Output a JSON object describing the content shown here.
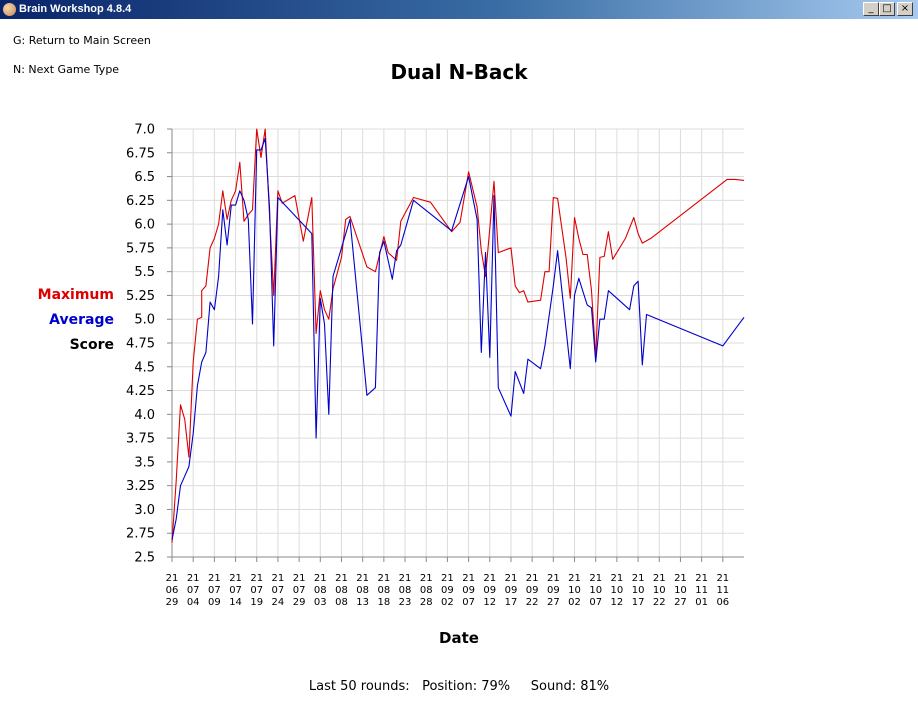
{
  "window": {
    "title": "Brain Workshop 4.8.4",
    "controls": {
      "minimize": "_",
      "maximize": "□",
      "close": "×"
    }
  },
  "hints": {
    "main_screen": "G: Return to Main Screen",
    "next_game": "N: Next Game Type"
  },
  "legend": {
    "maximum": "Maximum",
    "maximum_color": "#dd0000",
    "average": "Average",
    "average_color": "#0000cc",
    "score": "Score",
    "score_color": "#000000"
  },
  "footer": {
    "label": "Last 50 rounds:",
    "position": "Position: 79%",
    "sound": "Sound: 81%"
  },
  "chart_data": {
    "type": "line",
    "title": "Dual N-Back",
    "xlabel": "Date",
    "ylabel": "",
    "ylim": [
      2.5,
      7.0
    ],
    "yticks": [
      "2.5",
      "2.75",
      "3.0",
      "3.25",
      "3.5",
      "3.75",
      "4.0",
      "4.25",
      "4.5",
      "4.75",
      "5.0",
      "5.25",
      "5.5",
      "5.75",
      "6.0",
      "6.25",
      "6.5",
      "6.75",
      "7.0"
    ],
    "xlim": [
      "2021-06-29",
      "2021-11-11"
    ],
    "xtick_dates": [
      "2021-06-29",
      "2021-07-04",
      "2021-07-09",
      "2021-07-14",
      "2021-07-19",
      "2021-07-24",
      "2021-07-29",
      "2021-08-03",
      "2021-08-08",
      "2021-08-13",
      "2021-08-18",
      "2021-08-23",
      "2021-08-28",
      "2021-09-02",
      "2021-09-07",
      "2021-09-12",
      "2021-09-17",
      "2021-09-22",
      "2021-09-27",
      "2021-10-02",
      "2021-10-07",
      "2021-10-12",
      "2021-10-17",
      "2021-10-22",
      "2021-10-27",
      "2021-11-01",
      "2021-11-06"
    ],
    "xtick_labels": [
      [
        "21",
        "06",
        "29"
      ],
      [
        "21",
        "07",
        "04"
      ],
      [
        "21",
        "07",
        "09"
      ],
      [
        "21",
        "07",
        "14"
      ],
      [
        "21",
        "07",
        "19"
      ],
      [
        "21",
        "07",
        "24"
      ],
      [
        "21",
        "07",
        "29"
      ],
      [
        "21",
        "08",
        "03"
      ],
      [
        "21",
        "08",
        "08"
      ],
      [
        "21",
        "08",
        "13"
      ],
      [
        "21",
        "08",
        "18"
      ],
      [
        "21",
        "08",
        "23"
      ],
      [
        "21",
        "08",
        "28"
      ],
      [
        "21",
        "09",
        "02"
      ],
      [
        "21",
        "09",
        "07"
      ],
      [
        "21",
        "09",
        "12"
      ],
      [
        "21",
        "09",
        "17"
      ],
      [
        "21",
        "09",
        "22"
      ],
      [
        "21",
        "09",
        "27"
      ],
      [
        "21",
        "10",
        "02"
      ],
      [
        "21",
        "10",
        "07"
      ],
      [
        "21",
        "10",
        "12"
      ],
      [
        "21",
        "10",
        "17"
      ],
      [
        "21",
        "10",
        "22"
      ],
      [
        "21",
        "10",
        "27"
      ],
      [
        "21",
        "11",
        "01"
      ],
      [
        "21",
        "11",
        "06"
      ]
    ],
    "grid": true,
    "series": [
      {
        "name": "Maximum",
        "color": "#dd0000",
        "points": [
          [
            "2021-06-29",
            2.65
          ],
          [
            "2021-06-30",
            3.3
          ],
          [
            "2021-07-01",
            4.1
          ],
          [
            "2021-07-02",
            3.95
          ],
          [
            "2021-07-03",
            3.55
          ],
          [
            "2021-07-04",
            4.55
          ],
          [
            "2021-07-05",
            5.0
          ],
          [
            "2021-07-06",
            5.02
          ],
          [
            "2021-07-06",
            5.3
          ],
          [
            "2021-07-07",
            5.35
          ],
          [
            "2021-07-08",
            5.75
          ],
          [
            "2021-07-09",
            5.85
          ],
          [
            "2021-07-10",
            6.0
          ],
          [
            "2021-07-11",
            6.35
          ],
          [
            "2021-07-12",
            6.05
          ],
          [
            "2021-07-13",
            6.25
          ],
          [
            "2021-07-14",
            6.35
          ],
          [
            "2021-07-15",
            6.65
          ],
          [
            "2021-07-16",
            6.03
          ],
          [
            "2021-07-17",
            6.1
          ],
          [
            "2021-07-18",
            6.15
          ],
          [
            "2021-07-19",
            7.0
          ],
          [
            "2021-07-20",
            6.7
          ],
          [
            "2021-07-21",
            7.0
          ],
          [
            "2021-07-22",
            6.1
          ],
          [
            "2021-07-23",
            5.25
          ],
          [
            "2021-07-24",
            6.35
          ],
          [
            "2021-07-25",
            6.22
          ],
          [
            "2021-07-28",
            6.3
          ],
          [
            "2021-07-30",
            5.82
          ],
          [
            "2021-08-01",
            6.28
          ],
          [
            "2021-08-02",
            4.85
          ],
          [
            "2021-08-03",
            5.3
          ],
          [
            "2021-08-04",
            5.1
          ],
          [
            "2021-08-05",
            5.0
          ],
          [
            "2021-08-06",
            5.32
          ],
          [
            "2021-08-08",
            5.65
          ],
          [
            "2021-08-09",
            6.05
          ],
          [
            "2021-08-10",
            6.08
          ],
          [
            "2021-08-14",
            5.55
          ],
          [
            "2021-08-16",
            5.5
          ],
          [
            "2021-08-18",
            5.87
          ],
          [
            "2021-08-19",
            5.7
          ],
          [
            "2021-08-21",
            5.62
          ],
          [
            "2021-08-22",
            6.03
          ],
          [
            "2021-08-25",
            6.28
          ],
          [
            "2021-08-29",
            6.23
          ],
          [
            "2021-09-03",
            5.92
          ],
          [
            "2021-09-05",
            6.02
          ],
          [
            "2021-09-07",
            6.55
          ],
          [
            "2021-09-09",
            6.18
          ],
          [
            "2021-09-10",
            5.72
          ],
          [
            "2021-09-11",
            5.45
          ],
          [
            "2021-09-13",
            6.45
          ],
          [
            "2021-09-14",
            5.7
          ],
          [
            "2021-09-17",
            5.75
          ],
          [
            "2021-09-18",
            5.35
          ],
          [
            "2021-09-19",
            5.28
          ],
          [
            "2021-09-20",
            5.3
          ],
          [
            "2021-09-21",
            5.18
          ],
          [
            "2021-09-24",
            5.2
          ],
          [
            "2021-09-25",
            5.5
          ],
          [
            "2021-09-26",
            5.5
          ],
          [
            "2021-09-27",
            6.28
          ],
          [
            "2021-09-28",
            6.27
          ],
          [
            "2021-09-30",
            5.65
          ],
          [
            "2021-10-01",
            5.22
          ],
          [
            "2021-10-02",
            6.07
          ],
          [
            "2021-10-03",
            5.85
          ],
          [
            "2021-10-04",
            5.68
          ],
          [
            "2021-10-05",
            5.68
          ],
          [
            "2021-10-06",
            5.3
          ],
          [
            "2021-10-07",
            4.6
          ],
          [
            "2021-10-08",
            5.65
          ],
          [
            "2021-10-09",
            5.66
          ],
          [
            "2021-10-10",
            5.92
          ],
          [
            "2021-10-11",
            5.63
          ],
          [
            "2021-10-14",
            5.85
          ],
          [
            "2021-10-16",
            6.07
          ],
          [
            "2021-10-17",
            5.9
          ],
          [
            "2021-10-18",
            5.8
          ],
          [
            "2021-10-20",
            5.85
          ],
          [
            "2021-11-07",
            6.47
          ],
          [
            "2021-11-09",
            6.47
          ],
          [
            "2021-11-11",
            6.46
          ]
        ]
      },
      {
        "name": "Average",
        "color": "#0000cc",
        "points": [
          [
            "2021-06-29",
            2.68
          ],
          [
            "2021-06-30",
            2.9
          ],
          [
            "2021-07-01",
            3.25
          ],
          [
            "2021-07-02",
            3.35
          ],
          [
            "2021-07-03",
            3.45
          ],
          [
            "2021-07-04",
            3.8
          ],
          [
            "2021-07-05",
            4.3
          ],
          [
            "2021-07-06",
            4.55
          ],
          [
            "2021-07-07",
            4.65
          ],
          [
            "2021-07-08",
            5.18
          ],
          [
            "2021-07-09",
            5.1
          ],
          [
            "2021-07-10",
            5.45
          ],
          [
            "2021-07-11",
            6.15
          ],
          [
            "2021-07-12",
            5.78
          ],
          [
            "2021-07-13",
            6.2
          ],
          [
            "2021-07-14",
            6.2
          ],
          [
            "2021-07-15",
            6.35
          ],
          [
            "2021-07-16",
            6.25
          ],
          [
            "2021-07-17",
            6.05
          ],
          [
            "2021-07-18",
            4.95
          ],
          [
            "2021-07-19",
            6.78
          ],
          [
            "2021-07-20",
            6.78
          ],
          [
            "2021-07-21",
            6.9
          ],
          [
            "2021-07-22",
            6.18
          ],
          [
            "2021-07-23",
            4.72
          ],
          [
            "2021-07-24",
            6.28
          ],
          [
            "2021-08-01",
            5.9
          ],
          [
            "2021-08-02",
            3.75
          ],
          [
            "2021-08-03",
            5.22
          ],
          [
            "2021-08-04",
            4.95
          ],
          [
            "2021-08-05",
            4.0
          ],
          [
            "2021-08-06",
            5.45
          ],
          [
            "2021-08-10",
            6.05
          ],
          [
            "2021-08-14",
            4.2
          ],
          [
            "2021-08-16",
            4.28
          ],
          [
            "2021-08-17",
            5.7
          ],
          [
            "2021-08-18",
            5.82
          ],
          [
            "2021-08-20",
            5.42
          ],
          [
            "2021-08-21",
            5.72
          ],
          [
            "2021-08-22",
            5.78
          ],
          [
            "2021-08-25",
            6.25
          ],
          [
            "2021-09-03",
            5.93
          ],
          [
            "2021-09-07",
            6.5
          ],
          [
            "2021-09-09",
            6.05
          ],
          [
            "2021-09-10",
            4.65
          ],
          [
            "2021-09-11",
            5.7
          ],
          [
            "2021-09-12",
            4.6
          ],
          [
            "2021-09-13",
            6.3
          ],
          [
            "2021-09-14",
            4.28
          ],
          [
            "2021-09-17",
            3.98
          ],
          [
            "2021-09-18",
            4.45
          ],
          [
            "2021-09-20",
            4.22
          ],
          [
            "2021-09-21",
            4.58
          ],
          [
            "2021-09-24",
            4.48
          ],
          [
            "2021-09-25",
            4.72
          ],
          [
            "2021-09-27",
            5.35
          ],
          [
            "2021-09-28",
            5.72
          ],
          [
            "2021-10-01",
            4.48
          ],
          [
            "2021-10-02",
            5.25
          ],
          [
            "2021-10-03",
            5.43
          ],
          [
            "2021-10-05",
            5.15
          ],
          [
            "2021-10-06",
            5.12
          ],
          [
            "2021-10-07",
            4.55
          ],
          [
            "2021-10-08",
            5.0
          ],
          [
            "2021-10-09",
            5.0
          ],
          [
            "2021-10-10",
            5.3
          ],
          [
            "2021-10-12",
            5.22
          ],
          [
            "2021-10-15",
            5.1
          ],
          [
            "2021-10-16",
            5.35
          ],
          [
            "2021-10-17",
            5.4
          ],
          [
            "2021-10-18",
            4.52
          ],
          [
            "2021-10-19",
            5.05
          ],
          [
            "2021-11-06",
            4.72
          ],
          [
            "2021-11-11",
            5.02
          ]
        ]
      }
    ]
  }
}
